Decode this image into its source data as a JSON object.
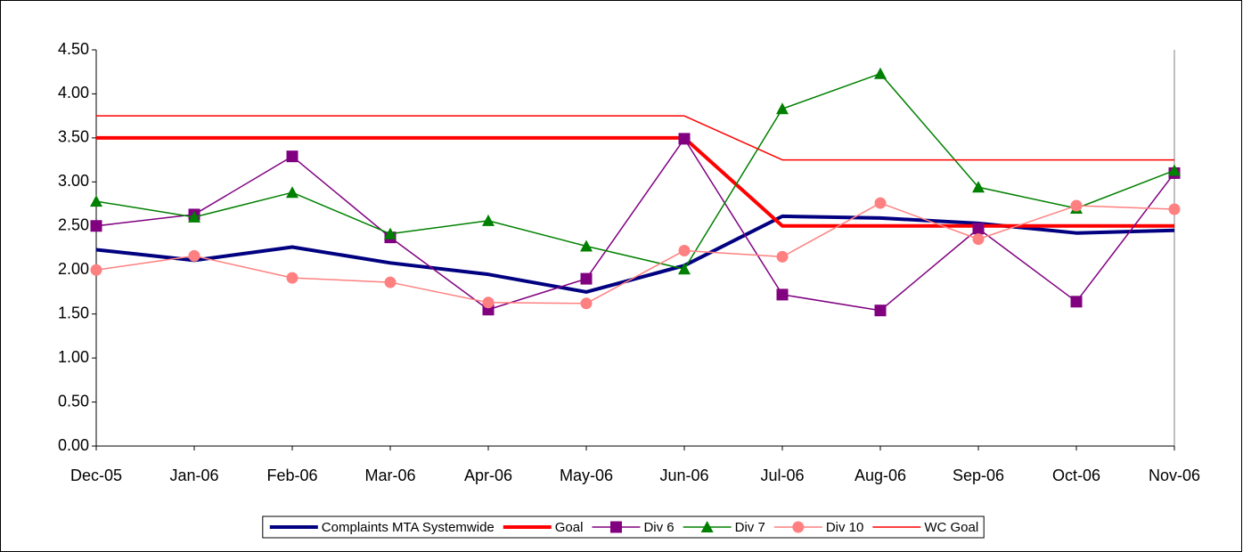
{
  "chart_data": {
    "type": "line",
    "categories": [
      "Dec-05",
      "Jan-06",
      "Feb-06",
      "Mar-06",
      "Apr-06",
      "May-06",
      "Jun-06",
      "Jul-06",
      "Aug-06",
      "Sep-06",
      "Oct-06",
      "Nov-06"
    ],
    "ylim": [
      0,
      4.5
    ],
    "yticks": [
      {
        "value": 0,
        "label": "0.00"
      },
      {
        "value": 0.5,
        "label": "0.50"
      },
      {
        "value": 1,
        "label": "1.00"
      },
      {
        "value": 1.5,
        "label": "1.50"
      },
      {
        "value": 2,
        "label": "2.00"
      },
      {
        "value": 2.5,
        "label": "2.50"
      },
      {
        "value": 3,
        "label": "3.00"
      },
      {
        "value": 3.5,
        "label": "3.50"
      },
      {
        "value": 4,
        "label": "4.00"
      },
      {
        "value": 4.5,
        "label": "4.50"
      }
    ],
    "legend": "bottom",
    "series": [
      {
        "name": "Complaints MTA Systemwide",
        "color": "#000080",
        "line_width": 4,
        "marker": null,
        "values": [
          2.23,
          2.11,
          2.26,
          2.08,
          1.95,
          1.75,
          2.05,
          2.61,
          2.59,
          2.53,
          2.42,
          2.45
        ]
      },
      {
        "name": "Goal",
        "color": "#ff0000",
        "line_width": 4,
        "marker": null,
        "values": [
          3.5,
          3.5,
          3.5,
          3.5,
          3.5,
          3.5,
          3.5,
          2.5,
          2.5,
          2.5,
          2.5,
          2.5
        ]
      },
      {
        "name": "Div 6",
        "color": "#800080",
        "line_width": 1.5,
        "marker": "square",
        "values": [
          2.5,
          2.63,
          3.29,
          2.37,
          1.55,
          1.9,
          3.49,
          1.72,
          1.54,
          2.47,
          1.64,
          3.1
        ]
      },
      {
        "name": "Div 7",
        "color": "#008000",
        "line_width": 1.5,
        "marker": "triangle",
        "values": [
          2.78,
          2.6,
          2.88,
          2.41,
          2.56,
          2.27,
          2.01,
          3.83,
          4.23,
          2.94,
          2.7,
          3.13
        ]
      },
      {
        "name": "Div 10",
        "color": "#ff8080",
        "line_width": 1.5,
        "marker": "circle",
        "values": [
          2.0,
          2.16,
          1.91,
          1.86,
          1.63,
          1.62,
          2.22,
          2.15,
          2.76,
          2.35,
          2.73,
          2.69
        ]
      },
      {
        "name": "WC Goal",
        "color": "#ff0000",
        "line_width": 1.5,
        "marker": null,
        "values": [
          3.75,
          3.75,
          3.75,
          3.75,
          3.75,
          3.75,
          3.75,
          3.25,
          3.25,
          3.25,
          3.25,
          3.25
        ]
      }
    ]
  }
}
